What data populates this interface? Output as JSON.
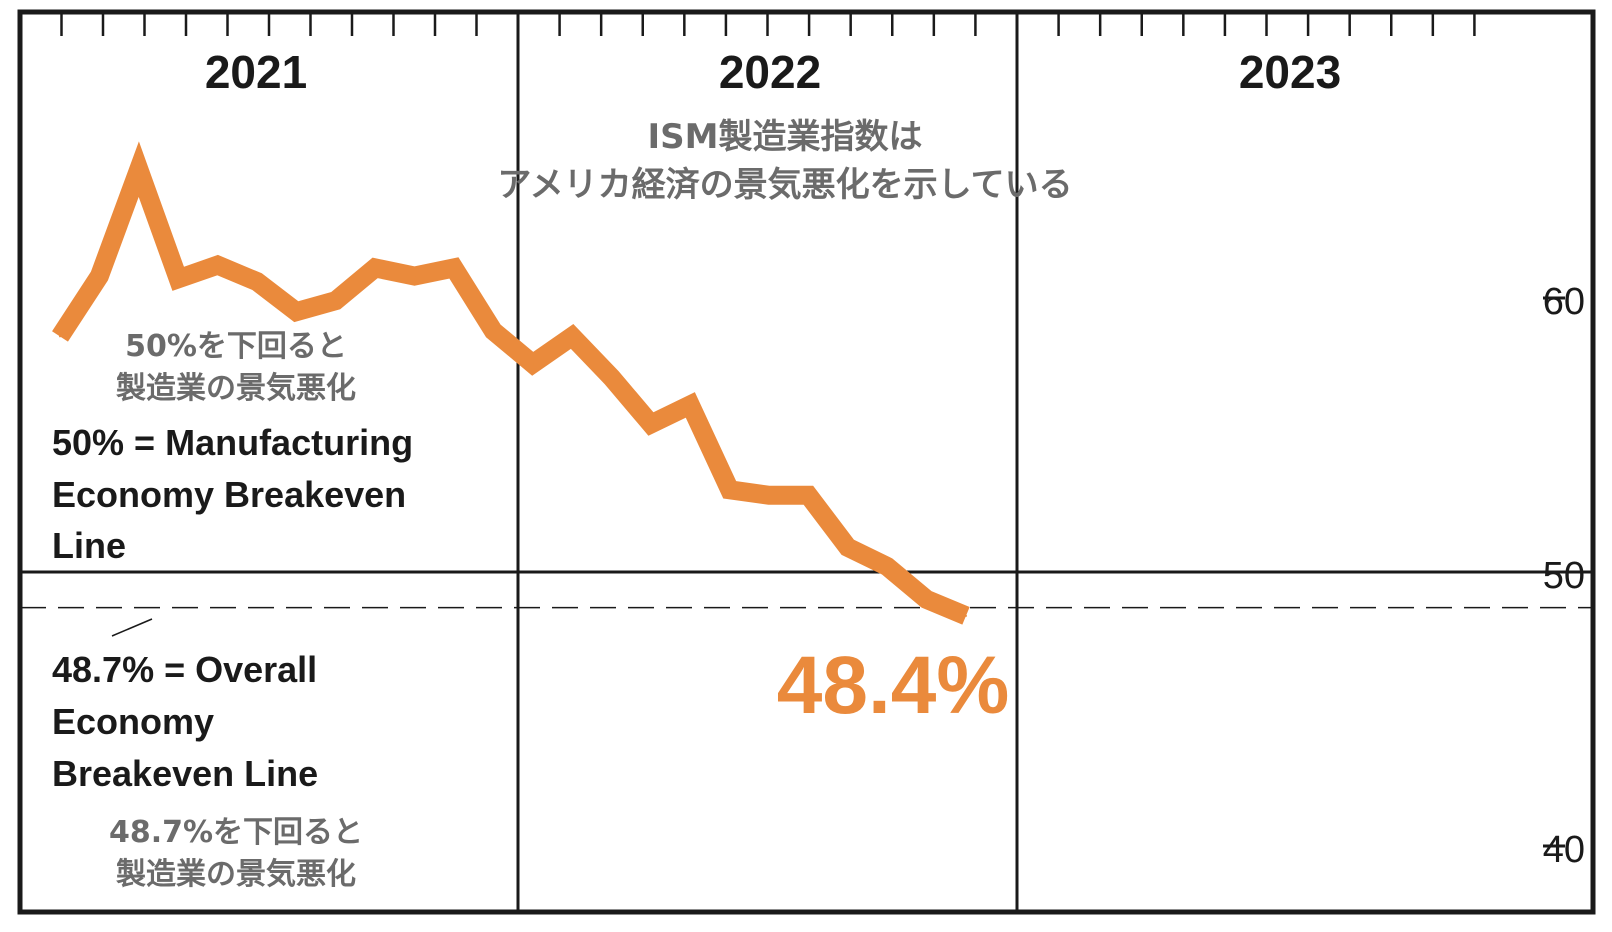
{
  "colors": {
    "line": "#ea8a3c",
    "frame": "#1a1a1a",
    "annotation_jp": "#6b6b6b"
  },
  "chart_data": {
    "type": "line",
    "title": "ISM製造業指数は",
    "subtitle": "アメリカ経済の景気悪化を示している",
    "year_labels": [
      "2021",
      "2022",
      "2023"
    ],
    "yticks": [
      60,
      50,
      40
    ],
    "ylim": [
      38.3,
      70.3
    ],
    "x": [
      "2021-01",
      "2021-02",
      "2021-03",
      "2021-04",
      "2021-05",
      "2021-06",
      "2021-07",
      "2021-08",
      "2021-09",
      "2021-10",
      "2021-11",
      "2021-12",
      "2022-01",
      "2022-02",
      "2022-03",
      "2022-04",
      "2022-05",
      "2022-06",
      "2022-07",
      "2022-08",
      "2022-09",
      "2022-10",
      "2022-11",
      "2022-12"
    ],
    "series": [
      {
        "values": [
          58.6,
          60.8,
          64.7,
          60.7,
          61.2,
          60.6,
          59.5,
          59.9,
          61.1,
          60.8,
          61.1,
          58.8,
          57.6,
          58.6,
          57.1,
          55.4,
          56.1,
          53.0,
          52.8,
          52.8,
          50.9,
          50.2,
          49.0,
          48.4
        ]
      }
    ],
    "reference_lines": [
      {
        "value": 50,
        "style": "solid",
        "label": "50% = Manufacturing Economy Breakeven Line",
        "label_lines": [
          "50% = Manufacturing",
          "Economy Breakeven",
          "Line"
        ],
        "label_jp_lines": [
          "50%を下回ると",
          "製造業の景気悪化"
        ]
      },
      {
        "value": 48.7,
        "style": "dashed",
        "label": "48.7% = Overall Economy Breakeven Line",
        "label_lines": [
          "48.7% = Overall",
          "Economy",
          "Breakeven Line"
        ],
        "label_jp_lines": [
          "48.7%を下回ると",
          "製造業の景気悪化"
        ]
      }
    ],
    "last_value_label": "48.4%",
    "grid": false
  }
}
